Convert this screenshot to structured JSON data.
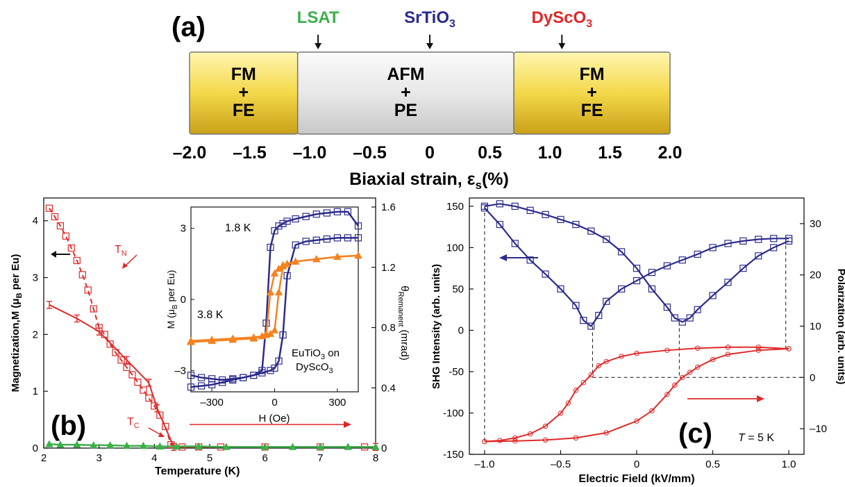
{
  "colors": {
    "blue": "#2b2b8c",
    "red": "#e02828",
    "orange": "#f58220",
    "green": "#3cb04a",
    "lsat": "#3cb04a",
    "sto": "#2b2b8c",
    "dso": "#e02828",
    "gold": "#f2d44a",
    "gray": "#e6e6e6"
  },
  "chart_data": [
    {
      "type": "bar",
      "panel_label": "(a)",
      "xlabel": "Biaxial strain, ε",
      "xlabel_sub": "s",
      "xlabel_tail": "(%)",
      "xlim": [
        -2.0,
        2.0
      ],
      "xticks": [
        "–2.0",
        "–1.5",
        "–1.0",
        "–0.5",
        "0",
        "0.5",
        "1.0",
        "1.5",
        "2.0"
      ],
      "xtick_values": [
        -2.0,
        -1.5,
        -1.0,
        -0.5,
        0,
        0.5,
        1.0,
        1.5,
        2.0
      ],
      "regions": [
        {
          "lines": [
            "FM",
            "+",
            "FE"
          ],
          "from": -2.0,
          "to": -1.1,
          "style": "gold"
        },
        {
          "lines": [
            "AFM",
            "+",
            "PE"
          ],
          "from": -1.1,
          "to": 0.7,
          "style": "gray"
        },
        {
          "lines": [
            "FM",
            "+",
            "FE"
          ],
          "from": 0.7,
          "to": 2.0,
          "style": "gold"
        }
      ],
      "substrates": [
        {
          "name": "LSAT",
          "strain": -0.93,
          "color": "lsat"
        },
        {
          "name": "SrTiO",
          "sub": "3",
          "strain": 0.0,
          "color": "sto"
        },
        {
          "name": "DyScO",
          "sub": "3",
          "strain": 1.1,
          "color": "dso"
        }
      ]
    },
    {
      "type": "line",
      "panel_label": "(b)",
      "xlabel": "Temperature (K)",
      "ylabel": "Magnetization,M (μ",
      "ylabel_sub": "B",
      "ylabel_tail": " per Eu)",
      "y2label": "θ",
      "y2label_sub": "Remanent",
      "y2label_tail": " (mrad)",
      "xlim": [
        2,
        8
      ],
      "ylim": [
        0,
        4.4
      ],
      "y2lim": [
        0,
        1.66
      ],
      "xticks": [
        2,
        3,
        4,
        5,
        6,
        7,
        8
      ],
      "yticks": [
        0,
        1,
        2,
        3,
        4
      ],
      "y2ticks": [
        "0",
        "0.4",
        "0.8",
        "1.2",
        "1.6"
      ],
      "y2tick_values": [
        0,
        0.4,
        0.8,
        1.2,
        1.6
      ],
      "annotations": [
        {
          "text": "T",
          "sub": "N"
        },
        {
          "text": "T",
          "sub": "C"
        }
      ],
      "series": [
        {
          "color": "red",
          "marker": "square",
          "dashed": true,
          "x": [
            2.1,
            2.2,
            2.3,
            2.4,
            2.5,
            2.6,
            2.7,
            2.8,
            2.9,
            3.0,
            3.1,
            3.2,
            3.3,
            3.4,
            3.5,
            3.6,
            3.7,
            3.8,
            3.9,
            4.0,
            4.1,
            4.2,
            4.3,
            4.5,
            4.8,
            5.2,
            6.0,
            7.0,
            7.8
          ],
          "y": [
            4.22,
            4.07,
            3.91,
            3.73,
            3.52,
            3.3,
            3.05,
            2.78,
            2.45,
            2.12,
            2.0,
            1.83,
            1.68,
            1.55,
            1.42,
            1.29,
            1.16,
            1.02,
            0.88,
            0.74,
            0.58,
            0.38,
            0.06,
            0.02,
            0.02,
            0.02,
            0.02,
            0.02,
            0.02
          ]
        },
        {
          "color": "red",
          "marker": "errorbar",
          "x": [
            2.1,
            2.6,
            3.0,
            3.5,
            3.9,
            4.05,
            4.35,
            8.0
          ],
          "y": [
            2.52,
            2.28,
            2.05,
            1.55,
            1.15,
            0.7,
            0.02,
            0.02
          ]
        },
        {
          "color": "green",
          "marker": "triangle",
          "x": [
            2.1,
            2.3,
            2.6,
            2.9,
            3.2,
            3.5,
            3.8,
            4.1,
            4.4,
            4.8,
            5.3,
            6.0,
            6.5,
            7.0,
            7.5,
            8.0
          ],
          "y": [
            0.07,
            0.06,
            0.06,
            0.05,
            0.05,
            0.04,
            0.04,
            0.03,
            0.03,
            0.03,
            0.02,
            0.02,
            0.02,
            0.02,
            0.02,
            0.02
          ]
        }
      ],
      "inset": {
        "xlabel": "H (Oe)",
        "ylabel": "M (μ",
        "ylabel_sub": "B",
        "ylabel_tail": " per Eu)",
        "xlim": [
          -400,
          400
        ],
        "ylim": [
          -3.9,
          3.9
        ],
        "xticks": [
          -300,
          0,
          300
        ],
        "xtick_labels": [
          "–300",
          "0",
          "300"
        ],
        "yticks": [
          -3,
          0,
          3
        ],
        "ytick_labels": [
          "–3",
          "0",
          "3"
        ],
        "label_18": "1.8 K",
        "label_38": "3.8 K",
        "caption_l1": "EuTiO",
        "caption_l1_sub": "3",
        "caption_l1_tail": " on",
        "caption_l2": "DyScO",
        "caption_l2_sub": "3",
        "loops": [
          {
            "color": "blue",
            "marker": "square",
            "branch": "upper",
            "x": [
              -400,
              -350,
              -300,
              -250,
              -200,
              -150,
              -100,
              -60,
              -40,
              -20,
              0,
              20,
              40,
              60,
              100,
              150,
              200,
              250,
              300,
              350,
              400
            ],
            "y": [
              -3.7,
              -3.65,
              -3.6,
              -3.5,
              -3.4,
              -3.3,
              -3.2,
              -3.0,
              -1.0,
              2.2,
              2.9,
              3.1,
              3.2,
              3.3,
              3.4,
              3.5,
              3.6,
              3.65,
              3.7,
              3.7,
              3.1
            ]
          },
          {
            "color": "blue",
            "marker": "square",
            "branch": "lower",
            "x": [
              -400,
              -350,
              -300,
              -250,
              -200,
              -150,
              -100,
              -60,
              -20,
              0,
              20,
              40,
              60,
              100,
              150,
              200,
              250,
              300,
              350,
              400
            ],
            "y": [
              -3.2,
              -3.3,
              -3.35,
              -3.4,
              -3.35,
              -3.3,
              -3.2,
              -3.1,
              -3.0,
              -2.9,
              -2.6,
              -1.5,
              1.0,
              2.3,
              2.45,
              2.5,
              2.55,
              2.6,
              2.6,
              2.6
            ]
          },
          {
            "color": "orange",
            "marker": "triangle",
            "branch": "upper",
            "x": [
              -400,
              -300,
              -200,
              -100,
              -60,
              -40,
              -20,
              0,
              20,
              40,
              60,
              100,
              200,
              300,
              400
            ],
            "y": [
              -1.75,
              -1.7,
              -1.65,
              -1.6,
              -1.55,
              -1.45,
              0.3,
              1.1,
              1.3,
              1.45,
              1.5,
              1.6,
              1.7,
              1.8,
              1.85
            ]
          },
          {
            "color": "orange",
            "marker": "triangle",
            "branch": "lower",
            "x": [
              -400,
              -300,
              -200,
              -100,
              -40,
              -20,
              0,
              20,
              40,
              60,
              100,
              200,
              300,
              400
            ],
            "y": [
              -1.8,
              -1.75,
              -1.7,
              -1.65,
              -1.5,
              -1.45,
              -1.3,
              0.3,
              1.4,
              1.5,
              1.6,
              1.7,
              1.8,
              1.85
            ]
          }
        ]
      }
    },
    {
      "type": "line",
      "panel_label": "(c)",
      "xlabel": "Electric Field (kV/mm)",
      "ylabel": "SHG Intensity (arb. units)",
      "y2label": "Polarization (arb. units)",
      "xlim": [
        -1.1,
        1.1
      ],
      "ylim": [
        -150,
        160
      ],
      "y2lim": [
        -15,
        35
      ],
      "xticks": [
        "–1.0",
        "–0.5",
        "0",
        "0.5",
        "1.0"
      ],
      "xtick_values": [
        -1.0,
        -0.5,
        0,
        0.5,
        1.0
      ],
      "yticks": [
        -150,
        -100,
        -50,
        0,
        50,
        100,
        150
      ],
      "y2ticks": [
        "–10",
        "0",
        "10",
        "20",
        "30"
      ],
      "y2tick_values": [
        -10,
        0,
        10,
        20,
        30
      ],
      "temp_label_italic": "T",
      "temp_label_tail": " = 5 K",
      "shg_series": [
        {
          "color": "blue",
          "marker": "square",
          "branch": "sweep_up",
          "x": [
            -1.0,
            -0.9,
            -0.8,
            -0.7,
            -0.6,
            -0.5,
            -0.4,
            -0.35,
            -0.3,
            -0.25,
            -0.2,
            -0.1,
            0.0,
            0.1,
            0.2,
            0.3,
            0.4,
            0.5,
            0.6,
            0.7,
            0.8,
            0.9,
            1.0
          ],
          "y": [
            148,
            128,
            105,
            85,
            68,
            50,
            30,
            12,
            5,
            18,
            35,
            50,
            60,
            70,
            78,
            85,
            92,
            100,
            105,
            108,
            110,
            111,
            111
          ]
        },
        {
          "color": "blue",
          "marker": "square",
          "branch": "sweep_down",
          "x": [
            1.0,
            0.9,
            0.8,
            0.7,
            0.6,
            0.5,
            0.4,
            0.35,
            0.3,
            0.25,
            0.2,
            0.1,
            0.0,
            -0.1,
            -0.2,
            -0.3,
            -0.4,
            -0.5,
            -0.6,
            -0.7,
            -0.8,
            -0.9,
            -1.0
          ],
          "y": [
            108,
            100,
            90,
            75,
            58,
            42,
            25,
            15,
            10,
            15,
            28,
            50,
            75,
            95,
            110,
            120,
            128,
            134,
            140,
            145,
            150,
            153,
            150
          ]
        }
      ],
      "pol_series": [
        {
          "color": "red",
          "marker": "circle",
          "branch": "upper",
          "x": [
            -1.0,
            -0.9,
            -0.8,
            -0.7,
            -0.6,
            -0.5,
            -0.45,
            -0.4,
            -0.35,
            -0.3,
            -0.25,
            -0.2,
            -0.1,
            0.0,
            0.2,
            0.4,
            0.6,
            0.8,
            1.0
          ],
          "y": [
            -12.5,
            -12.3,
            -11.8,
            -11.0,
            -9.5,
            -7.0,
            -5.0,
            -2.5,
            -1.0,
            0.5,
            2.3,
            3.1,
            4.1,
            4.7,
            5.3,
            5.7,
            5.9,
            5.9,
            5.6
          ]
        },
        {
          "color": "red",
          "marker": "circle",
          "branch": "lower",
          "x": [
            1.0,
            0.8,
            0.6,
            0.5,
            0.4,
            0.35,
            0.3,
            0.25,
            0.2,
            0.1,
            0.0,
            -0.2,
            -0.4,
            -0.6,
            -0.8,
            -1.0
          ],
          "y": [
            5.6,
            5.3,
            4.5,
            3.5,
            2.0,
            1.0,
            0.0,
            -1.5,
            -3.3,
            -6.5,
            -8.5,
            -10.8,
            -11.8,
            -12.2,
            -12.4,
            -12.5
          ]
        }
      ]
    }
  ]
}
